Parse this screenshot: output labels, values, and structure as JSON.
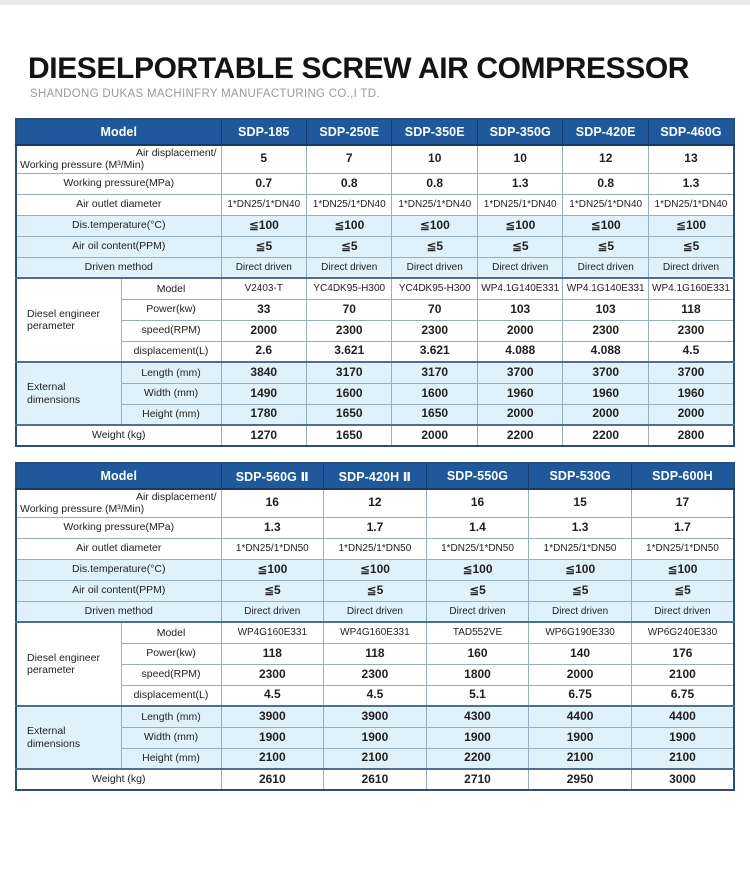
{
  "page": {
    "title": "DIESELPORTABLE SCREW AIR COMPRESSOR",
    "subtitle": "SHANDONG DUKAS MACHINFRY MANUFACTURING CO.,I TD."
  },
  "colors": {
    "header_blue": "#20599b",
    "row_blue": "#dff1fa",
    "grid_border": "#95aec2",
    "outer_border": "#2a4d79",
    "topbar_gray": "#e9e9e9"
  },
  "tables": [
    {
      "name": "spec-table-1",
      "corner_label": "Model",
      "models": [
        "SDP-185",
        "SDP-250E",
        "SDP-350E",
        "SDP-350G",
        "SDP-420E",
        "SDP-460G"
      ],
      "rows": [
        {
          "label_line1": "Air displacement/",
          "label_line2": "Working pressure (M³/Min)",
          "shade": "white",
          "tall": true,
          "values": [
            "5",
            "7",
            "10",
            "10",
            "12",
            "13"
          ]
        },
        {
          "label": "Working pressure(MPa)",
          "shade": "white",
          "values": [
            "0.7",
            "0.8",
            "0.8",
            "1.3",
            "0.8",
            "1.3"
          ]
        },
        {
          "label": "Air outlet diameter",
          "shade": "white",
          "values": [
            "1*DN25/1*DN40",
            "1*DN25/1*DN40",
            "1*DN25/1*DN40",
            "1*DN25/1*DN40",
            "1*DN25/1*DN40",
            "1*DN25/1*DN40"
          ]
        },
        {
          "label": "Dis.temperature(°C)",
          "shade": "blue",
          "values": [
            "≦100",
            "≦100",
            "≦100",
            "≦100",
            "≦100",
            "≦100"
          ]
        },
        {
          "label": "Air oil content(PPM)",
          "shade": "blue",
          "values": [
            "≦5",
            "≦5",
            "≦5",
            "≦5",
            "≦5",
            "≦5"
          ]
        },
        {
          "label": "Driven method",
          "shade": "blue",
          "values": [
            "Direct driven",
            "Direct driven",
            "Direct driven",
            "Direct driven",
            "Direct driven",
            "Direct driven"
          ]
        },
        {
          "group": "Diesel engineer perameter",
          "group_span": 4,
          "section": true,
          "label": "Model",
          "shade": "white",
          "values": [
            "V2403-T",
            "YC4DK95-H300",
            "YC4DK95-H300",
            "WP4.1G140E331",
            "WP4.1G140E331",
            "WP4.1G160E331"
          ]
        },
        {
          "label": "Power(kw)",
          "sub": true,
          "shade": "white",
          "values": [
            "33",
            "70",
            "70",
            "103",
            "103",
            "118"
          ]
        },
        {
          "label": "speed(RPM)",
          "sub": true,
          "shade": "white",
          "values": [
            "2000",
            "2300",
            "2300",
            "2000",
            "2300",
            "2300"
          ]
        },
        {
          "label": "displacement(L)",
          "sub": true,
          "shade": "white",
          "values": [
            "2.6",
            "3.621",
            "3.621",
            "4.088",
            "4.088",
            "4.5"
          ]
        },
        {
          "group": "External dimensions",
          "group_span": 3,
          "section": true,
          "label": "Length (mm)",
          "shade": "blue",
          "values": [
            "3840",
            "3170",
            "3170",
            "3700",
            "3700",
            "3700"
          ]
        },
        {
          "label": "Width (mm)",
          "sub": true,
          "shade": "blue",
          "values": [
            "1490",
            "1600",
            "1600",
            "1960",
            "1960",
            "1960"
          ]
        },
        {
          "label": "Height (mm)",
          "sub": true,
          "shade": "blue",
          "values": [
            "1780",
            "1650",
            "1650",
            "2000",
            "2000",
            "2000"
          ]
        },
        {
          "label": "Weight (kg)",
          "section": true,
          "shade": "white",
          "values": [
            "1270",
            "1650",
            "2000",
            "2200",
            "2200",
            "2800"
          ]
        }
      ]
    },
    {
      "name": "spec-table-2",
      "corner_label": "Model",
      "models": [
        "SDP-560G Ⅱ",
        "SDP-420H Ⅱ",
        "SDP-550G",
        "SDP-530G",
        "SDP-600H"
      ],
      "rows": [
        {
          "label_line1": "Air displacement/",
          "label_line2": "Working pressure (M³/Min)",
          "shade": "white",
          "tall": true,
          "values": [
            "16",
            "12",
            "16",
            "15",
            "17"
          ]
        },
        {
          "label": "Working pressure(MPa)",
          "shade": "white",
          "values": [
            "1.3",
            "1.7",
            "1.4",
            "1.3",
            "1.7"
          ]
        },
        {
          "label": "Air outlet diameter",
          "shade": "white",
          "values": [
            "1*DN25/1*DN50",
            "1*DN25/1*DN50",
            "1*DN25/1*DN50",
            "1*DN25/1*DN50",
            "1*DN25/1*DN50"
          ]
        },
        {
          "label": "Dis.temperature(°C)",
          "shade": "blue",
          "values": [
            "≦100",
            "≦100",
            "≦100",
            "≦100",
            "≦100"
          ]
        },
        {
          "label": "Air oil content(PPM)",
          "shade": "blue",
          "values": [
            "≦5",
            "≦5",
            "≦5",
            "≦5",
            "≦5"
          ]
        },
        {
          "label": "Driven method",
          "shade": "blue",
          "values": [
            "Direct driven",
            "Direct driven",
            "Direct driven",
            "Direct driven",
            "Direct driven"
          ]
        },
        {
          "group": "Diesel engineer perameter",
          "group_span": 4,
          "section": true,
          "label": "Model",
          "shade": "white",
          "values": [
            "WP4G160E331",
            "WP4G160E331",
            "TAD552VE",
            "WP6G190E330",
            "WP6G240E330"
          ]
        },
        {
          "label": "Power(kw)",
          "sub": true,
          "shade": "white",
          "values": [
            "118",
            "118",
            "160",
            "140",
            "176"
          ]
        },
        {
          "label": "speed(RPM)",
          "sub": true,
          "shade": "white",
          "values": [
            "2300",
            "2300",
            "1800",
            "2000",
            "2100"
          ]
        },
        {
          "label": "displacement(L)",
          "sub": true,
          "shade": "white",
          "values": [
            "4.5",
            "4.5",
            "5.1",
            "6.75",
            "6.75"
          ]
        },
        {
          "group": "External dimensions",
          "group_span": 3,
          "section": true,
          "label": "Length (mm)",
          "shade": "blue",
          "values": [
            "3900",
            "3900",
            "4300",
            "4400",
            "4400"
          ]
        },
        {
          "label": "Width (mm)",
          "sub": true,
          "shade": "blue",
          "values": [
            "1900",
            "1900",
            "1900",
            "1900",
            "1900"
          ]
        },
        {
          "label": "Height (mm)",
          "sub": true,
          "shade": "blue",
          "values": [
            "2100",
            "2100",
            "2200",
            "2100",
            "2100"
          ]
        },
        {
          "label": "Weight (kg)",
          "section": true,
          "shade": "white",
          "values": [
            "2610",
            "2610",
            "2710",
            "2950",
            "3000"
          ]
        }
      ]
    }
  ]
}
